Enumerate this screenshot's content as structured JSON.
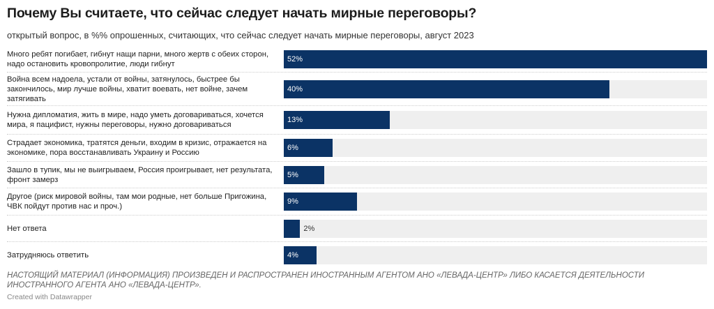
{
  "chart_data": {
    "type": "bar",
    "title": "Почему Вы считаете, что сейчас следует начать мирные переговоры?",
    "subtitle": "открытый вопрос, в %% опрошенных, считающих, что сейчас следует начать мирные переговоры, август 2023",
    "categories": [
      "Много ребят погибает, гибнут нащи парни, много жертв с обеих сторон, надо остановить кровопролитие, люди гибнут",
      "Война всем надоела, устали от войны, затянулось, быстрее бы закончилось, мир лучше войны, хватит воевать, нет войне, зачем затягивать",
      "Нужна дипломатия, жить в мире, надо уметь договариваться, хочется мира, я пацифист, нужны переговоры, нужно договариваться",
      "Страдает экономика, тратятся деньги, входим в кризис, отражается на экономике, пора восстанавливать Украину и Россию",
      "Зашло в тупик, мы не выигрываем, Россия проигрывает, нет результата, фронт замерз",
      "Другое (риск мировой войны, там мои родные, нет больше Пригожина, ЧВК пойдут против нас и проч.)",
      "Нет ответа",
      "Затрудняюсь ответить"
    ],
    "values": [
      52,
      40,
      13,
      6,
      5,
      9,
      2,
      4
    ],
    "labels": [
      "52%",
      "40%",
      "13%",
      "6%",
      "5%",
      "9%",
      "2%",
      "4%"
    ],
    "xlim": [
      0,
      52
    ],
    "bar_color": "#0b3365",
    "track_color": "#efefef"
  },
  "note": "НАСТОЯЩИЙ МАТЕРИАЛ (ИНФОРМАЦИЯ) ПРОИЗВЕДЕН И РАСПРОСТРАНЕН ИНОСТРАННЫМ АГЕНТОМ АНО «ЛЕВАДА-ЦЕНТР» ЛИБО КАСАЕТСЯ ДЕЯТЕЛЬНОСТИ ИНОСТРАННОГО АГЕНТА АНО «ЛЕВАДА-ЦЕНТР».",
  "credit": "Created with Datawrapper"
}
